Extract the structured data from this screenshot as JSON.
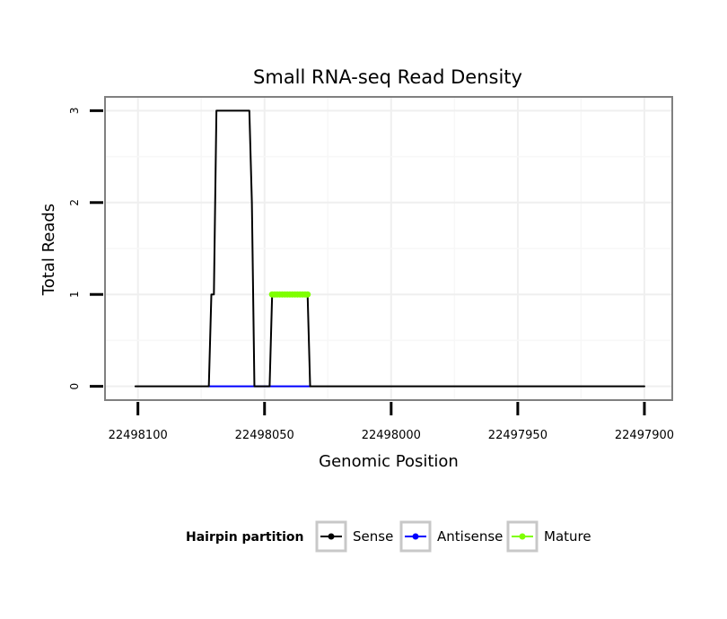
{
  "chart_data": {
    "type": "line",
    "title": "Small RNA-seq Read Density",
    "xlabel": "Genomic Position",
    "ylabel": "Total Reads",
    "x_reversed": true,
    "xlim": [
      22498113,
      22497889
    ],
    "ylim": [
      -0.15,
      3.15
    ],
    "x_ticks": [
      22498100,
      22498050,
      22498000,
      22497950,
      22497900
    ],
    "x_tick_labels": [
      "22498100",
      "22498050",
      "22498000",
      "22497950",
      "22497900"
    ],
    "y_ticks": [
      0,
      1,
      2,
      3
    ],
    "y_tick_labels": [
      "0",
      "1",
      "2",
      "3"
    ],
    "grid": true,
    "legend": {
      "title": "Hairpin partition",
      "position": "bottom",
      "entries": [
        "Sense",
        "Antisense",
        "Mature"
      ]
    },
    "series": [
      {
        "name": "Sense",
        "color": "#000000",
        "x": [
          22498101,
          22498072,
          22498071,
          22498070,
          22498069,
          22498068,
          22498067,
          22498066,
          22498065,
          22498064,
          22498063,
          22498062,
          22498061,
          22498060,
          22498059,
          22498058,
          22498057,
          22498056,
          22498055,
          22498054,
          22498053,
          22498052,
          22498051,
          22498050,
          22498049,
          22498048,
          22498047,
          22498046,
          22498045,
          22498044,
          22498043,
          22498042,
          22498041,
          22498040,
          22498039,
          22498038,
          22498037,
          22498036,
          22498035,
          22498034,
          22498033,
          22498032,
          22497900
        ],
        "y": [
          0,
          0,
          1,
          1,
          3,
          3,
          3,
          3,
          3,
          3,
          3,
          3,
          3,
          3,
          3,
          3,
          3,
          3,
          2,
          0,
          0,
          0,
          0,
          0,
          0,
          0,
          1,
          1,
          1,
          1,
          1,
          1,
          1,
          1,
          1,
          1,
          1,
          1,
          1,
          1,
          1,
          0,
          0
        ]
      },
      {
        "name": "Antisense",
        "color": "#0000ff",
        "x": [
          22498072,
          22498032
        ],
        "y": [
          0,
          0
        ]
      },
      {
        "name": "Mature",
        "color": "#7fff00",
        "x": [
          22498047,
          22498046,
          22498045,
          22498044,
          22498043,
          22498042,
          22498041,
          22498040,
          22498039,
          22498038,
          22498037,
          22498036,
          22498035,
          22498034,
          22498033
        ],
        "y": [
          1,
          1,
          1,
          1,
          1,
          1,
          1,
          1,
          1,
          1,
          1,
          1,
          1,
          1,
          1
        ]
      }
    ]
  }
}
